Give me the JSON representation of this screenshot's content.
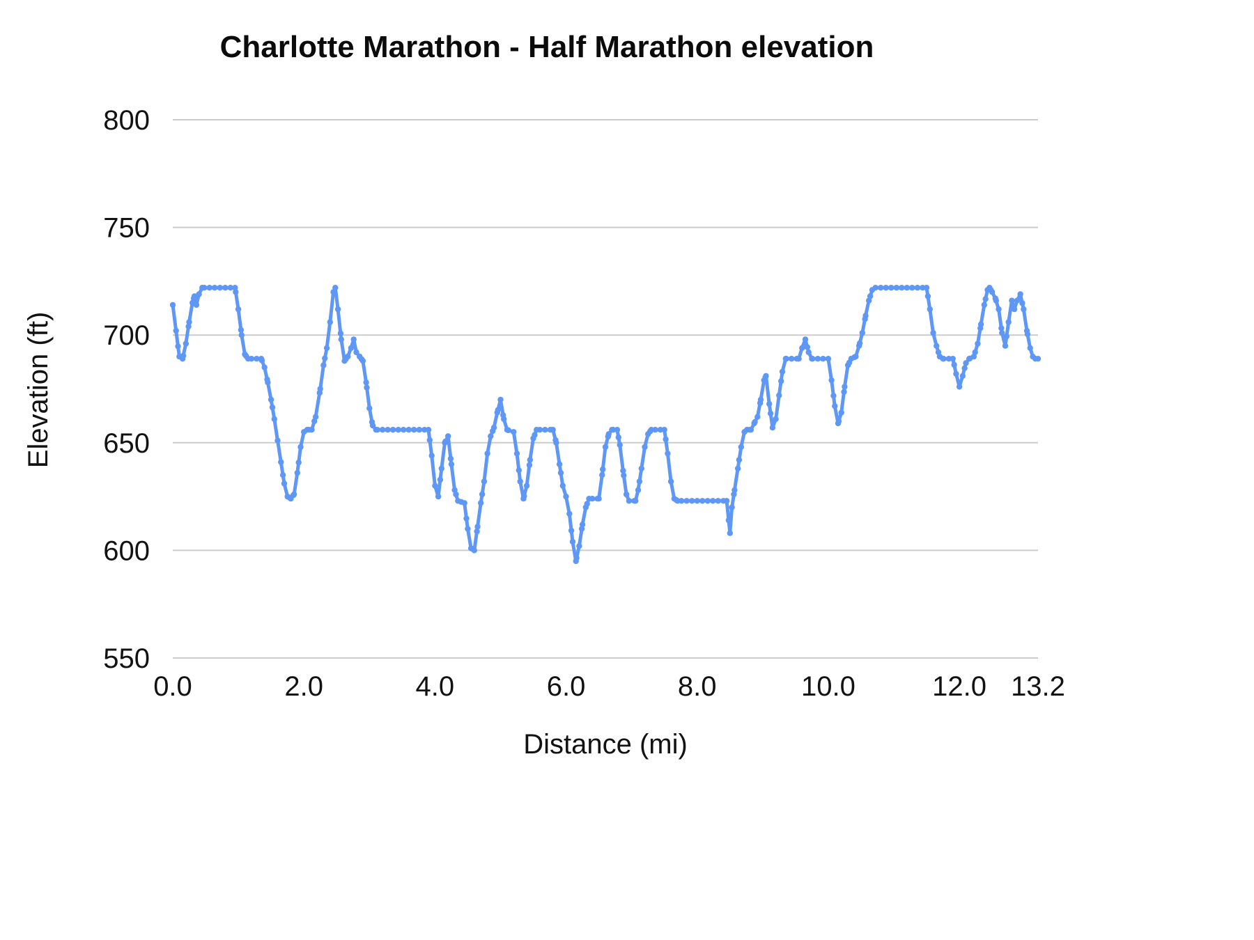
{
  "chart_data": {
    "type": "line",
    "title": "Charlotte Marathon - Half Marathon elevation",
    "xlabel": "Distance (mi)",
    "ylabel": "Elevation (ft)",
    "xlim": [
      0,
      13.2
    ],
    "ylim": [
      550,
      800
    ],
    "y_ticks": [
      550,
      600,
      650,
      700,
      750,
      800
    ],
    "x_ticks": [
      {
        "v": 0,
        "label": "0.0"
      },
      {
        "v": 2,
        "label": "2.0"
      },
      {
        "v": 4,
        "label": "4.0"
      },
      {
        "v": 6,
        "label": "6.0"
      },
      {
        "v": 8,
        "label": "8.0"
      },
      {
        "v": 10,
        "label": "10.0"
      },
      {
        "v": 12,
        "label": "12.0"
      },
      {
        "v": 13.2,
        "label": "13.2"
      }
    ],
    "grid": "horizontal",
    "legend": "none",
    "line_color": "#5e97f6",
    "grid_color": "#cccccc",
    "series_name": "elevation",
    "points": [
      [
        0.0,
        714
      ],
      [
        0.05,
        702
      ],
      [
        0.1,
        690
      ],
      [
        0.15,
        689
      ],
      [
        0.2,
        696
      ],
      [
        0.25,
        706
      ],
      [
        0.3,
        715
      ],
      [
        0.33,
        718
      ],
      [
        0.36,
        714
      ],
      [
        0.4,
        719
      ],
      [
        0.45,
        722
      ],
      [
        0.95,
        722
      ],
      [
        1.0,
        712
      ],
      [
        1.05,
        700
      ],
      [
        1.1,
        691
      ],
      [
        1.15,
        689
      ],
      [
        1.35,
        689
      ],
      [
        1.4,
        685
      ],
      [
        1.45,
        678
      ],
      [
        1.5,
        670
      ],
      [
        1.55,
        661
      ],
      [
        1.6,
        651
      ],
      [
        1.65,
        641
      ],
      [
        1.7,
        631
      ],
      [
        1.75,
        625
      ],
      [
        1.8,
        624
      ],
      [
        1.85,
        626
      ],
      [
        1.9,
        636
      ],
      [
        1.95,
        648
      ],
      [
        2.0,
        655
      ],
      [
        2.05,
        656
      ],
      [
        2.12,
        656
      ],
      [
        2.18,
        662
      ],
      [
        2.25,
        675
      ],
      [
        2.3,
        686
      ],
      [
        2.35,
        694
      ],
      [
        2.4,
        706
      ],
      [
        2.45,
        720
      ],
      [
        2.48,
        722
      ],
      [
        2.52,
        712
      ],
      [
        2.57,
        698
      ],
      [
        2.62,
        688
      ],
      [
        2.67,
        690
      ],
      [
        2.72,
        694
      ],
      [
        2.76,
        698
      ],
      [
        2.8,
        692
      ],
      [
        2.85,
        690
      ],
      [
        2.9,
        688
      ],
      [
        2.95,
        678
      ],
      [
        3.0,
        666
      ],
      [
        3.05,
        658
      ],
      [
        3.1,
        656
      ],
      [
        3.9,
        656
      ],
      [
        3.95,
        644
      ],
      [
        4.0,
        630
      ],
      [
        4.05,
        625
      ],
      [
        4.1,
        638
      ],
      [
        4.15,
        650
      ],
      [
        4.2,
        653
      ],
      [
        4.25,
        640
      ],
      [
        4.3,
        628
      ],
      [
        4.35,
        623
      ],
      [
        4.45,
        622
      ],
      [
        4.5,
        610
      ],
      [
        4.55,
        601
      ],
      [
        4.6,
        600
      ],
      [
        4.65,
        611
      ],
      [
        4.7,
        622
      ],
      [
        4.75,
        632
      ],
      [
        4.8,
        645
      ],
      [
        4.85,
        653
      ],
      [
        4.9,
        657
      ],
      [
        4.95,
        664
      ],
      [
        5.0,
        670
      ],
      [
        5.05,
        661
      ],
      [
        5.1,
        656
      ],
      [
        5.2,
        655
      ],
      [
        5.25,
        645
      ],
      [
        5.3,
        632
      ],
      [
        5.35,
        624
      ],
      [
        5.4,
        630
      ],
      [
        5.45,
        642
      ],
      [
        5.5,
        652
      ],
      [
        5.55,
        656
      ],
      [
        5.8,
        656
      ],
      [
        5.85,
        650
      ],
      [
        5.9,
        640
      ],
      [
        5.95,
        630
      ],
      [
        6.0,
        625
      ],
      [
        6.05,
        617
      ],
      [
        6.1,
        604
      ],
      [
        6.15,
        595
      ],
      [
        6.2,
        602
      ],
      [
        6.25,
        612
      ],
      [
        6.3,
        620
      ],
      [
        6.35,
        624
      ],
      [
        6.5,
        624
      ],
      [
        6.55,
        635
      ],
      [
        6.6,
        648
      ],
      [
        6.65,
        654
      ],
      [
        6.7,
        656
      ],
      [
        6.78,
        656
      ],
      [
        6.82,
        649
      ],
      [
        6.87,
        637
      ],
      [
        6.92,
        626
      ],
      [
        6.96,
        623
      ],
      [
        7.06,
        623
      ],
      [
        7.1,
        628
      ],
      [
        7.15,
        638
      ],
      [
        7.2,
        648
      ],
      [
        7.25,
        654
      ],
      [
        7.3,
        656
      ],
      [
        7.5,
        656
      ],
      [
        7.55,
        645
      ],
      [
        7.6,
        632
      ],
      [
        7.65,
        624
      ],
      [
        7.7,
        623
      ],
      [
        8.45,
        623
      ],
      [
        8.5,
        608
      ],
      [
        8.53,
        620
      ],
      [
        8.57,
        628
      ],
      [
        8.62,
        638
      ],
      [
        8.67,
        648
      ],
      [
        8.72,
        655
      ],
      [
        8.76,
        656
      ],
      [
        8.82,
        656
      ],
      [
        8.87,
        659
      ],
      [
        8.92,
        662
      ],
      [
        8.97,
        670
      ],
      [
        9.02,
        679
      ],
      [
        9.05,
        681
      ],
      [
        9.1,
        668
      ],
      [
        9.15,
        657
      ],
      [
        9.2,
        661
      ],
      [
        9.25,
        672
      ],
      [
        9.3,
        683
      ],
      [
        9.35,
        689
      ],
      [
        9.55,
        689
      ],
      [
        9.6,
        694
      ],
      [
        9.65,
        698
      ],
      [
        9.7,
        692
      ],
      [
        9.75,
        689
      ],
      [
        10.0,
        689
      ],
      [
        10.05,
        679
      ],
      [
        10.1,
        667
      ],
      [
        10.15,
        659
      ],
      [
        10.2,
        664
      ],
      [
        10.25,
        676
      ],
      [
        10.3,
        686
      ],
      [
        10.35,
        689
      ],
      [
        10.42,
        690
      ],
      [
        10.47,
        695
      ],
      [
        10.52,
        701
      ],
      [
        10.57,
        709
      ],
      [
        10.62,
        716
      ],
      [
        10.67,
        721
      ],
      [
        10.72,
        722
      ],
      [
        11.5,
        722
      ],
      [
        11.55,
        712
      ],
      [
        11.6,
        701
      ],
      [
        11.65,
        695
      ],
      [
        11.7,
        690
      ],
      [
        11.75,
        689
      ],
      [
        11.9,
        689
      ],
      [
        11.95,
        682
      ],
      [
        12.0,
        676
      ],
      [
        12.05,
        681
      ],
      [
        12.1,
        687
      ],
      [
        12.15,
        689
      ],
      [
        12.22,
        690
      ],
      [
        12.28,
        696
      ],
      [
        12.33,
        705
      ],
      [
        12.38,
        714
      ],
      [
        12.43,
        721
      ],
      [
        12.46,
        722
      ],
      [
        12.5,
        720
      ],
      [
        12.55,
        717
      ],
      [
        12.6,
        712
      ],
      [
        12.65,
        701
      ],
      [
        12.7,
        695
      ],
      [
        12.75,
        706
      ],
      [
        12.8,
        716
      ],
      [
        12.84,
        712
      ],
      [
        12.88,
        716
      ],
      [
        12.93,
        719
      ],
      [
        12.98,
        712
      ],
      [
        13.03,
        702
      ],
      [
        13.08,
        694
      ],
      [
        13.12,
        690
      ],
      [
        13.16,
        689
      ],
      [
        13.2,
        689
      ]
    ]
  }
}
